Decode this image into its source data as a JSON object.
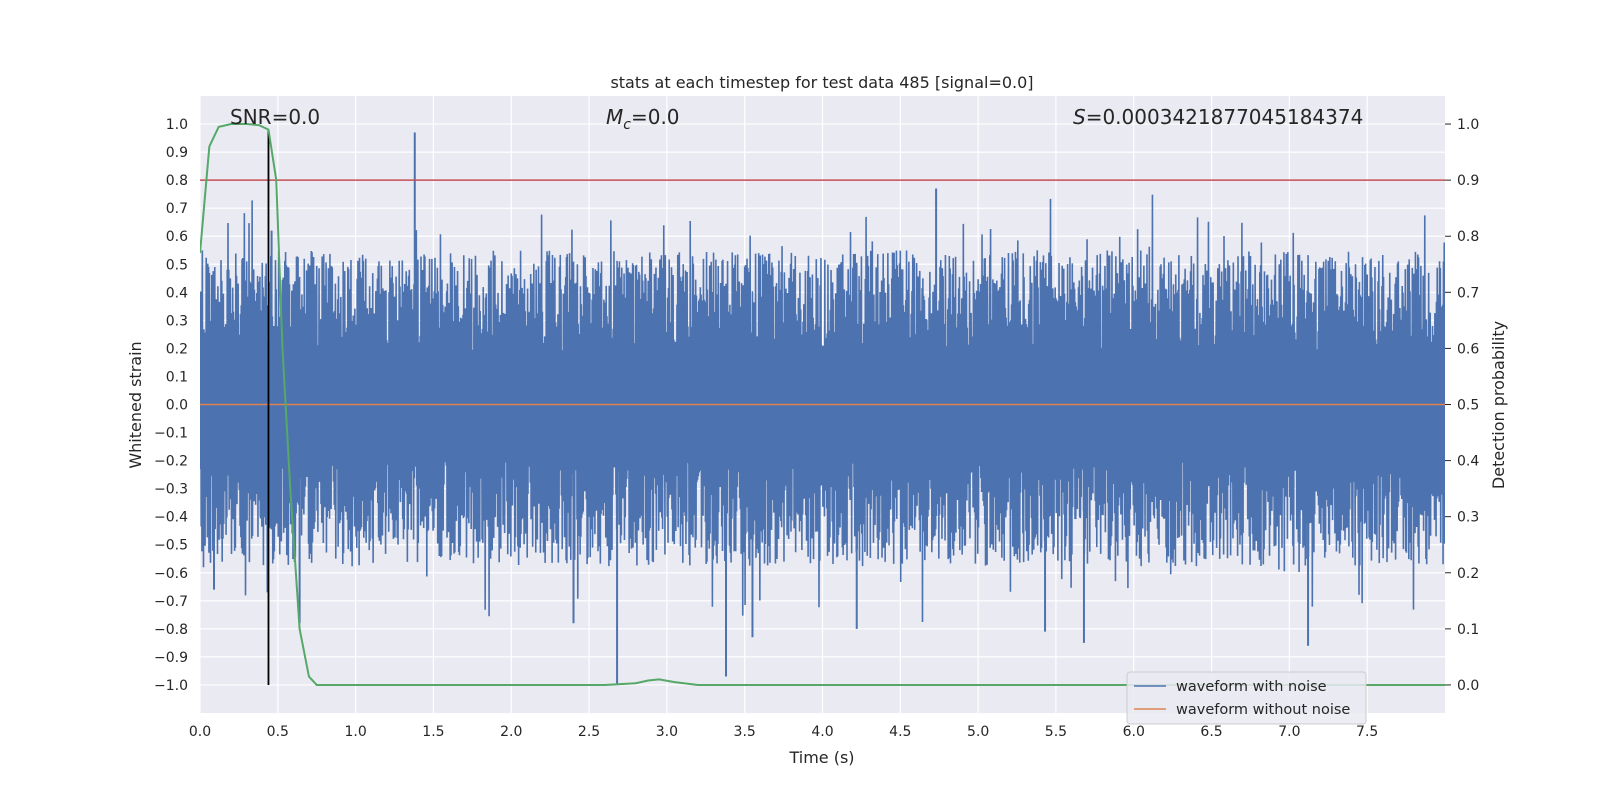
{
  "chart_data": {
    "type": "line",
    "title": "stats at each timestep for test data 485 [signal=0.0]",
    "xlabel": "Time (s)",
    "ylabel": "Whitened strain",
    "y2label": "Detection probability",
    "xlim": [
      0.0,
      8.0
    ],
    "ylim": [
      -1.1,
      1.1
    ],
    "y2lim": [
      -0.05,
      1.05
    ],
    "x_ticks": [
      "0.0",
      "0.5",
      "1.0",
      "1.5",
      "2.0",
      "2.5",
      "3.0",
      "3.5",
      "4.0",
      "4.5",
      "5.0",
      "5.5",
      "6.0",
      "6.5",
      "7.0",
      "7.5"
    ],
    "y_ticks": [
      "1.0",
      "0.9",
      "0.8",
      "0.7",
      "0.6",
      "0.5",
      "0.4",
      "0.3",
      "0.2",
      "0.1",
      "0.0",
      "−0.1",
      "−0.2",
      "−0.3",
      "−0.4",
      "−0.5",
      "−0.6",
      "−0.7",
      "−0.8",
      "−0.9",
      "−1.0"
    ],
    "y2_ticks": [
      "1.0",
      "0.9",
      "0.8",
      "0.7",
      "0.6",
      "0.5",
      "0.4",
      "0.3",
      "0.2",
      "0.1",
      "0.0"
    ],
    "colors": {
      "noisy": "#4c72b0",
      "clean": "#dd8452",
      "probability": "#55a868",
      "threshold": "#c44e52",
      "marker": "#000000",
      "background": "#eaeaf2"
    },
    "series": [
      {
        "name": "waveform with noise",
        "kind": "noise",
        "envelope_upper": 0.55,
        "envelope_lower": -0.55,
        "peak_points": [
          {
            "x": 1.38,
            "y": 0.97
          },
          {
            "x": 0.46,
            "y": 0.62
          },
          {
            "x": 4.73,
            "y": 0.77
          },
          {
            "x": 2.68,
            "y": -1.0
          },
          {
            "x": 3.38,
            "y": -0.97
          },
          {
            "x": 5.68,
            "y": -0.85
          },
          {
            "x": 7.12,
            "y": -0.86
          },
          {
            "x": 4.22,
            "y": -0.8
          },
          {
            "x": 2.4,
            "y": -0.78
          },
          {
            "x": 0.64,
            "y": -0.78
          },
          {
            "x": 5.43,
            "y": -0.81
          },
          {
            "x": 3.55,
            "y": -0.83
          },
          {
            "x": 0.09,
            "y": -0.66
          }
        ]
      },
      {
        "name": "waveform without noise",
        "x": [
          0.0,
          8.0
        ],
        "y": [
          0.0,
          0.0
        ]
      },
      {
        "name": "Detection probability",
        "axis": "right",
        "x": [
          0.0,
          0.06,
          0.12,
          0.2,
          0.3,
          0.38,
          0.44,
          0.49,
          0.53,
          0.58,
          0.64,
          0.7,
          0.75,
          0.85,
          2.6,
          2.8,
          2.88,
          2.95,
          3.05,
          3.2,
          8.0
        ],
        "y": [
          0.77,
          0.96,
          0.995,
          1.0,
          1.0,
          0.998,
          0.99,
          0.9,
          0.6,
          0.35,
          0.1,
          0.015,
          0.0,
          0.0,
          0.0,
          0.003,
          0.008,
          0.01,
          0.005,
          0.0,
          0.0
        ]
      }
    ],
    "threshold_line": {
      "axis": "right",
      "y": 0.9
    },
    "marker_line": {
      "x": 0.44,
      "ymin": -1.0,
      "ymax": 0.98
    },
    "legend": {
      "position": "lower right",
      "entries": [
        "waveform with noise",
        "waveform without noise"
      ]
    },
    "annotations": {
      "snr": {
        "prefix": "SNR",
        "text": "=0.0"
      },
      "mc": {
        "symbol": "M",
        "subscript": "c",
        "text": "=0.0"
      },
      "s": {
        "symbol": "S",
        "text": "=0.0003421877045184374"
      }
    }
  }
}
